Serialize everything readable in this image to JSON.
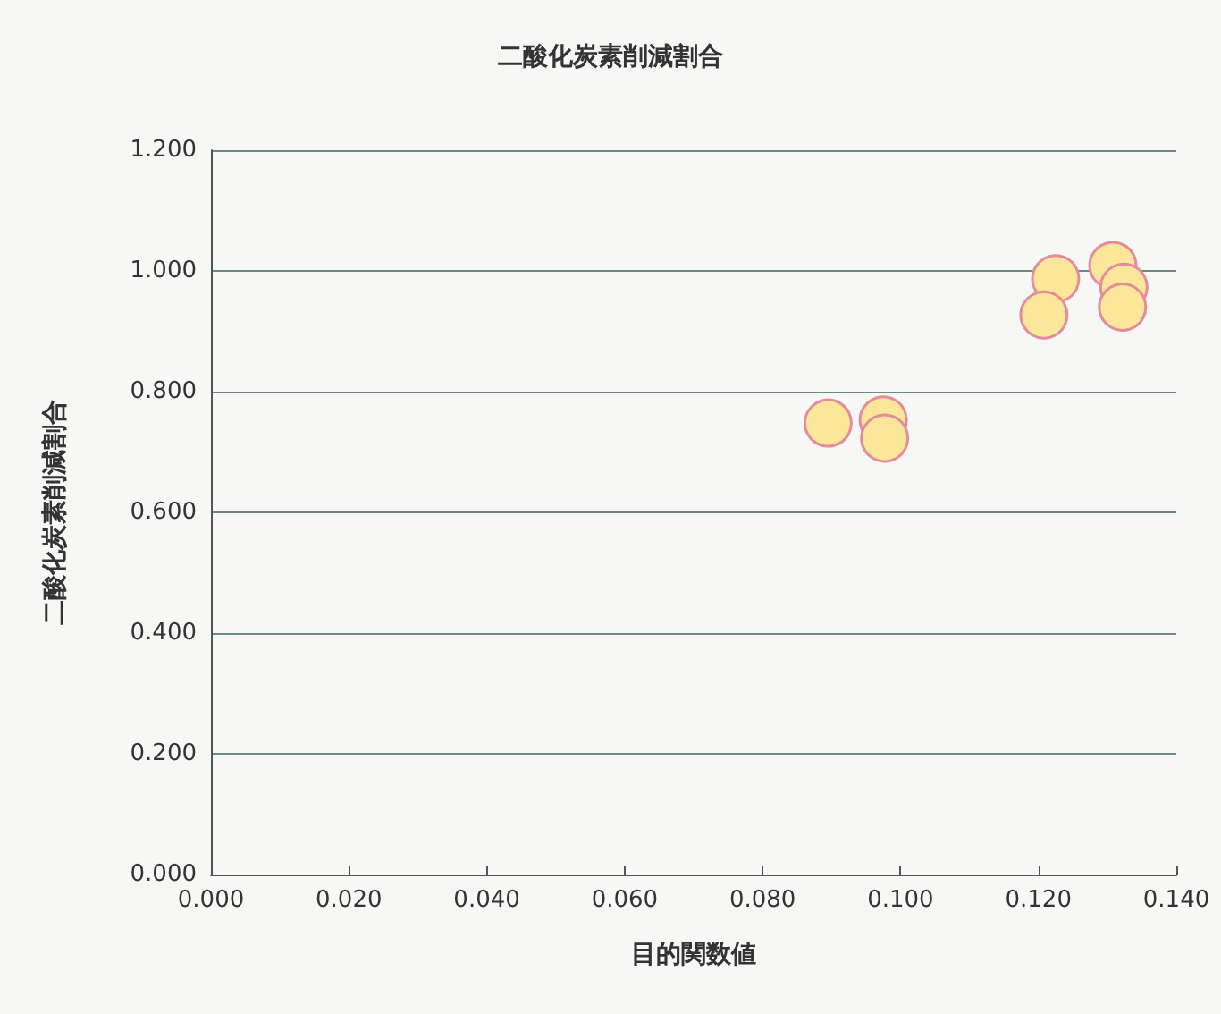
{
  "chart_data": {
    "type": "scatter",
    "title": "二酸化炭素削減割合",
    "xlabel": "目的関数値",
    "ylabel": "二酸化炭素削減割合",
    "x": [
      0.0895,
      0.0975,
      0.0977,
      0.1225,
      0.1208,
      0.1308,
      0.1324,
      0.1322
    ],
    "series": [
      {
        "color": "#fbe79a",
        "values": [
          0.748,
          0.753,
          0.723,
          0.987,
          0.927,
          1.009,
          0.973,
          0.94
        ]
      }
    ],
    "xlim": [
      0,
      0.14
    ],
    "xticks": [
      {
        "value": 0,
        "label": "0.000"
      },
      {
        "value": 0.02,
        "label": "0.020"
      },
      {
        "value": 0.04,
        "label": "0.040"
      },
      {
        "value": 0.06,
        "label": "0.060"
      },
      {
        "value": 0.08,
        "label": "0.080"
      },
      {
        "value": 0.1,
        "label": "0.100"
      },
      {
        "value": 0.12,
        "label": "0.120"
      },
      {
        "value": 0.14,
        "label": "0.140"
      }
    ],
    "ylim": [
      0,
      1.2
    ],
    "yticks": [
      {
        "value": 0,
        "label": "0.000"
      },
      {
        "value": 0.2,
        "label": "0.200"
      },
      {
        "value": 0.4,
        "label": "0.400"
      },
      {
        "value": 0.6,
        "label": "0.600"
      },
      {
        "value": 0.8,
        "label": "0.800"
      },
      {
        "value": 1,
        "label": "1.000"
      },
      {
        "value": 1.2,
        "label": "1.200"
      }
    ],
    "grid": "y",
    "marker": "circle"
  }
}
